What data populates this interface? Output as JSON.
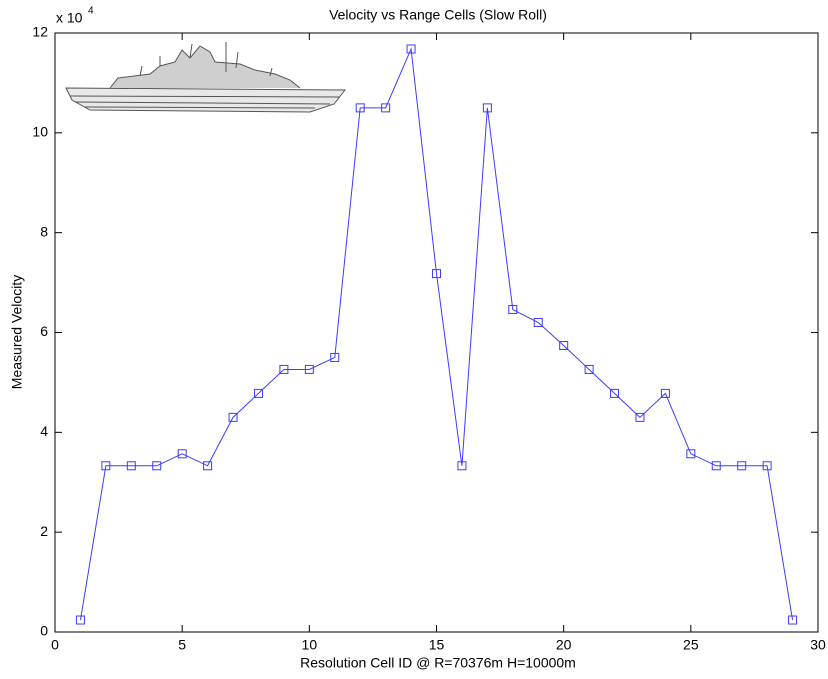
{
  "chart_data": {
    "type": "line",
    "title": "Velocity vs Range Cells (Slow Roll)",
    "x_label": "Resolution Cell ID @ R=70376m H=10000m",
    "y_label": "Measured Velocity",
    "y_multiplier": {
      "base": "x 10",
      "exponent": "4"
    },
    "x": [
      1,
      2,
      3,
      4,
      5,
      6,
      7,
      8,
      9,
      10,
      11,
      12,
      13,
      14,
      15,
      16,
      17,
      18,
      19,
      20,
      21,
      22,
      23,
      24,
      25,
      26,
      27,
      28,
      29
    ],
    "series": [
      {
        "color": "#3c3cff",
        "marker": "square",
        "values": [
          0.24,
          3.33,
          3.33,
          3.33,
          3.57,
          3.33,
          4.3,
          4.78,
          5.26,
          5.26,
          5.5,
          10.5,
          10.5,
          11.68,
          7.18,
          3.33,
          10.5,
          6.46,
          6.2,
          5.74,
          5.26,
          4.78,
          4.3,
          4.78,
          3.57,
          3.33,
          3.33,
          3.33,
          0.24
        ]
      }
    ],
    "xlim": [
      0,
      30
    ],
    "xticks": [
      0,
      5,
      10,
      15,
      20,
      25,
      30
    ],
    "ylim": [
      0,
      12
    ],
    "yticks": [
      0,
      2,
      4,
      6,
      8,
      10,
      12
    ],
    "grid": false
  }
}
